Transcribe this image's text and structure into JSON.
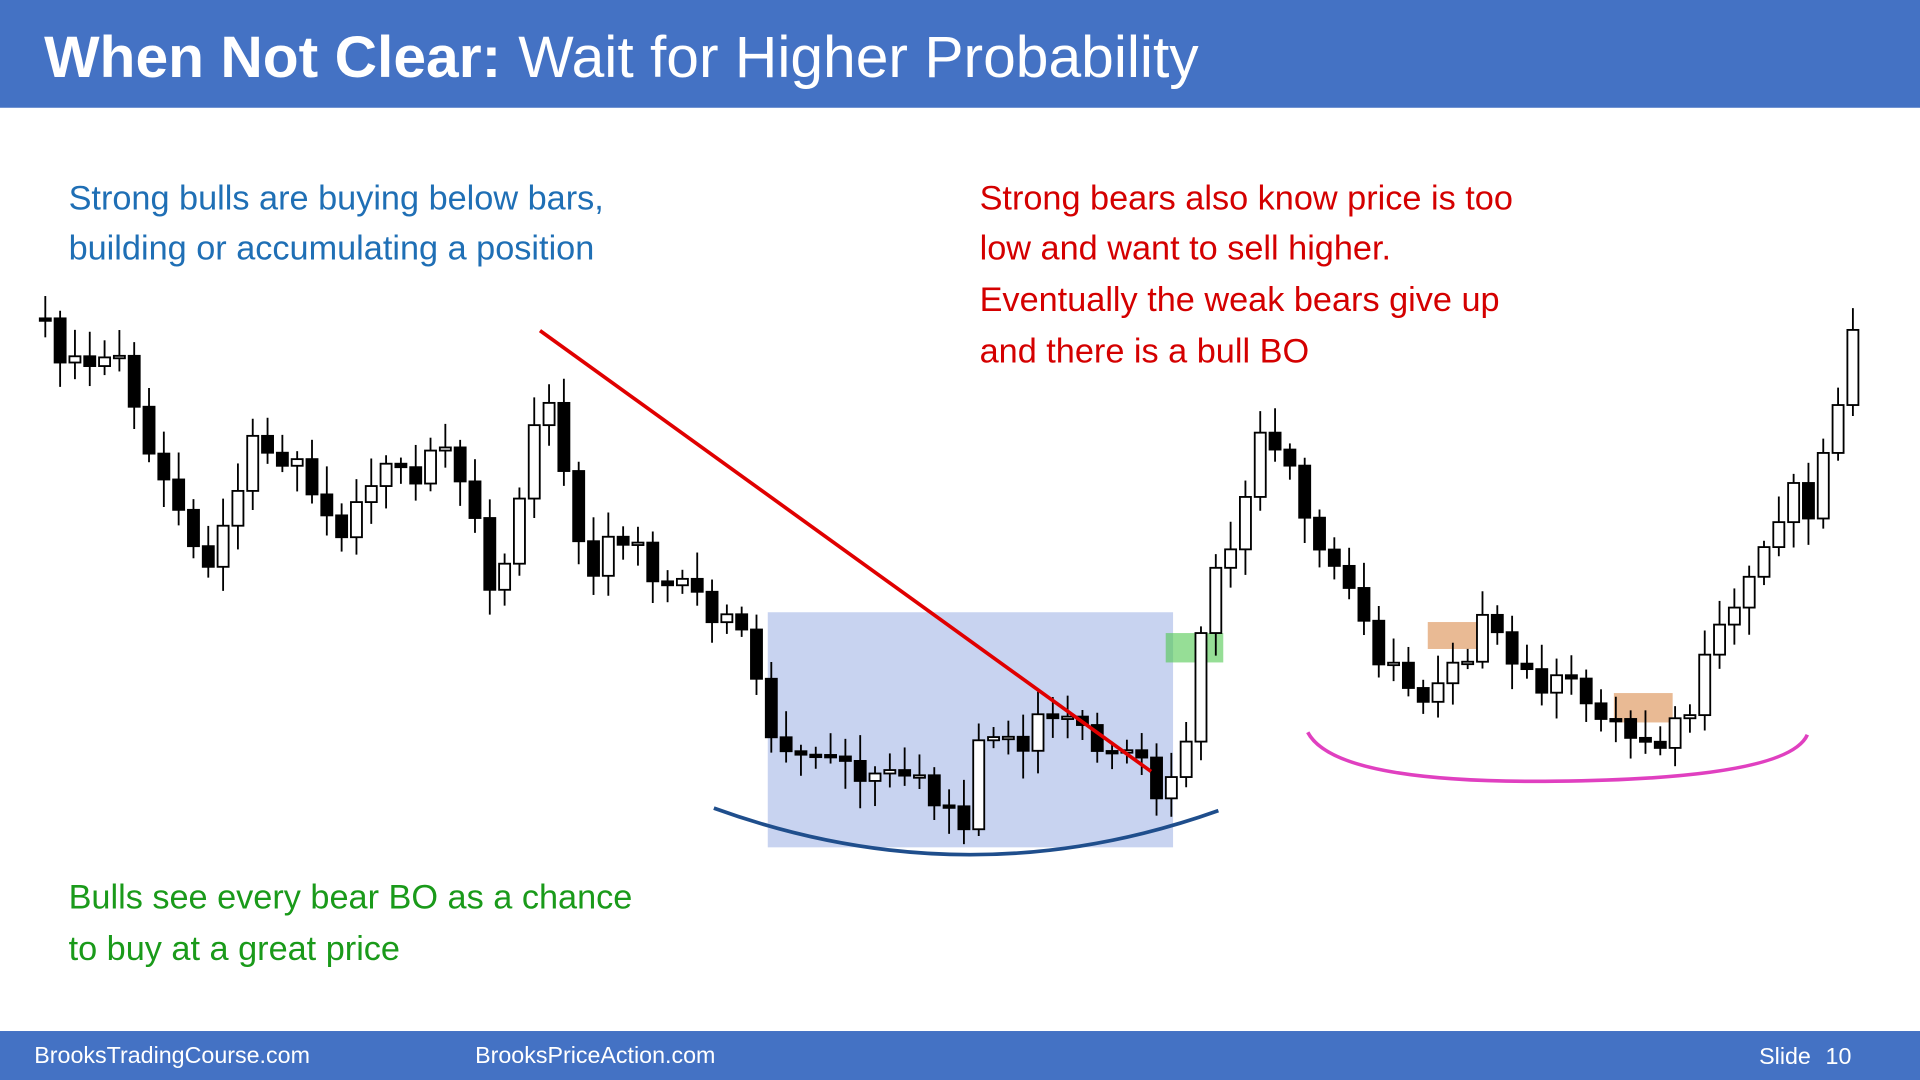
{
  "header": {
    "title_bold": "When Not Clear:",
    "title_rest": "Wait for Higher Probability"
  },
  "notes": {
    "bulls_buying": [
      "Strong bulls are buying below bars,",
      "building or accumulating a position"
    ],
    "bears_selling": [
      "Strong bears also know price is too",
      "low and want to sell higher.",
      "Eventually the weak bears give up",
      "and there is a bull BO"
    ],
    "bulls_bear_bo": [
      "Bulls see every bear BO as a chance",
      "to buy at a great price"
    ]
  },
  "footer": {
    "left": "BrooksTradingCourse.com",
    "center": "BrooksPriceAction.com",
    "slide_label": "Slide",
    "slide_number": "10"
  }
}
